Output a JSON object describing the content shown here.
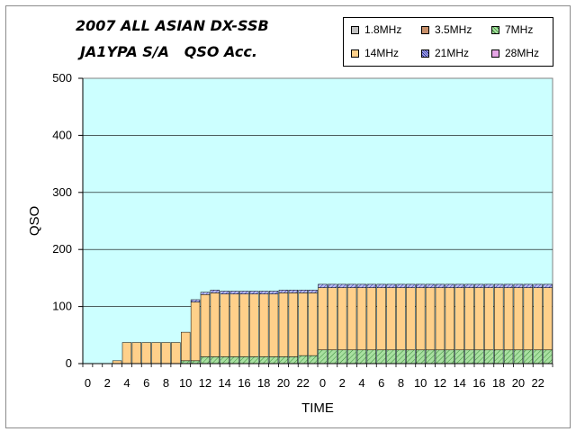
{
  "title_line1": "2007 ALL ASIAN DX-SSB",
  "title_line2": "JA1YPA S/A   QSO Acc.",
  "legend": [
    {
      "label": "1.8MHz",
      "color": "#c0c0c0"
    },
    {
      "label": "3.5MHz",
      "color": "#c8906a"
    },
    {
      "label": "7MHz",
      "color": "#a8e0a0"
    },
    {
      "label": "14MHz",
      "color": "#ffd08a"
    },
    {
      "label": "21MHz",
      "color": "#9aa0ee"
    },
    {
      "label": "28MHz",
      "color": "#e6a6e6"
    }
  ],
  "chart_data": {
    "type": "bar",
    "stacked": true,
    "xlabel": "TIME",
    "ylabel": "QSO",
    "ylim": [
      0,
      500
    ],
    "yticks": [
      0,
      100,
      200,
      300,
      400,
      500
    ],
    "xtick_labels": [
      "0",
      "2",
      "4",
      "6",
      "8",
      "10",
      "12",
      "14",
      "16",
      "18",
      "20",
      "22",
      "0",
      "2",
      "4",
      "6",
      "8",
      "10",
      "12",
      "14",
      "16",
      "18",
      "20",
      "22"
    ],
    "categories": [
      "0",
      "1",
      "2",
      "3",
      "4",
      "5",
      "6",
      "7",
      "8",
      "9",
      "10",
      "11",
      "12",
      "13",
      "14",
      "15",
      "16",
      "17",
      "18",
      "19",
      "20",
      "21",
      "22",
      "23",
      "0",
      "1",
      "2",
      "3",
      "4",
      "5",
      "6",
      "7",
      "8",
      "9",
      "10",
      "11",
      "12",
      "13",
      "14",
      "15",
      "16",
      "17",
      "18",
      "19",
      "20",
      "21",
      "22",
      "23"
    ],
    "plot_background": "#ccffff",
    "grid": true,
    "legend_position": "top-right",
    "series": [
      {
        "name": "1.8MHz",
        "color": "#c0c0c0",
        "values": [
          0,
          0,
          0,
          0,
          0,
          0,
          0,
          0,
          0,
          0,
          0,
          0,
          0,
          0,
          0,
          0,
          0,
          0,
          0,
          0,
          0,
          0,
          0,
          0,
          0,
          0,
          0,
          0,
          0,
          0,
          0,
          0,
          0,
          0,
          0,
          0,
          0,
          0,
          0,
          0,
          0,
          0,
          0,
          0,
          0,
          0,
          0,
          0
        ]
      },
      {
        "name": "3.5MHz",
        "color": "#c8906a",
        "values": [
          0,
          0,
          0,
          0,
          0,
          0,
          0,
          0,
          0,
          0,
          0,
          0,
          0,
          0,
          0,
          0,
          0,
          0,
          0,
          0,
          0,
          0,
          0,
          0,
          0,
          0,
          0,
          0,
          0,
          0,
          0,
          0,
          0,
          0,
          0,
          0,
          0,
          0,
          0,
          0,
          0,
          0,
          0,
          0,
          0,
          0,
          0,
          0
        ]
      },
      {
        "name": "7MHz",
        "color": "#a8e0a0",
        "values": [
          0,
          0,
          0,
          0,
          0,
          0,
          0,
          0,
          0,
          0,
          5,
          5,
          12,
          12,
          12,
          12,
          12,
          12,
          12,
          12,
          12,
          12,
          14,
          14,
          24,
          24,
          24,
          24,
          24,
          24,
          24,
          24,
          24,
          24,
          24,
          24,
          24,
          24,
          24,
          24,
          24,
          24,
          24,
          24,
          24,
          24,
          24,
          24
        ]
      },
      {
        "name": "14MHz",
        "color": "#ffd08a",
        "values": [
          0,
          0,
          0,
          5,
          37,
          37,
          37,
          37,
          37,
          37,
          50,
          103,
          109,
          112,
          110,
          110,
          110,
          110,
          110,
          110,
          112,
          112,
          110,
          110,
          109,
          109,
          109,
          109,
          109,
          109,
          109,
          109,
          109,
          109,
          109,
          109,
          109,
          109,
          109,
          109,
          109,
          109,
          109,
          109,
          109,
          109,
          109,
          109
        ]
      },
      {
        "name": "21MHz",
        "color": "#9aa0ee",
        "values": [
          0,
          0,
          0,
          0,
          0,
          0,
          0,
          0,
          0,
          0,
          0,
          4,
          4,
          5,
          5,
          5,
          5,
          5,
          5,
          5,
          5,
          5,
          5,
          5,
          6,
          6,
          6,
          6,
          6,
          6,
          6,
          6,
          6,
          6,
          6,
          6,
          6,
          6,
          6,
          6,
          6,
          6,
          6,
          6,
          6,
          6,
          6,
          6
        ]
      },
      {
        "name": "28MHz",
        "color": "#e6a6e6",
        "values": [
          0,
          0,
          0,
          0,
          0,
          0,
          0,
          0,
          0,
          0,
          0,
          0,
          0,
          0,
          0,
          0,
          0,
          0,
          0,
          0,
          0,
          0,
          0,
          0,
          0,
          0,
          0,
          0,
          0,
          0,
          0,
          0,
          0,
          0,
          0,
          0,
          0,
          0,
          0,
          0,
          0,
          0,
          0,
          0,
          0,
          0,
          0,
          0
        ]
      }
    ]
  }
}
